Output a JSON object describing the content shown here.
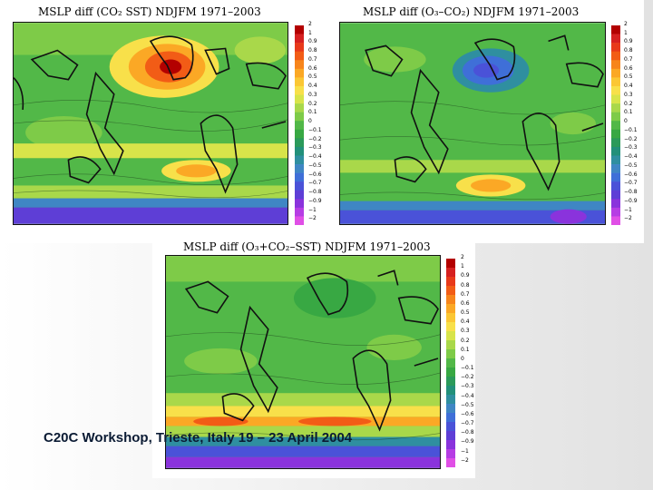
{
  "panels": [
    {
      "title": "MSLP diff (CO₂ SST) NDJFM 1971–2003"
    },
    {
      "title": "MSLP diff (O₃–CO₂) NDJFM 1971–2003"
    },
    {
      "title": "MSLP diff (O₃+CO₂–SST) NDJFM 1971–2003"
    }
  ],
  "colorbar": {
    "labels": [
      "2",
      "1",
      "0.9",
      "0.8",
      "0.7",
      "0.6",
      "0.5",
      "0.4",
      "0.3",
      "0.2",
      "0.1",
      "0",
      "−0.1",
      "−0.2",
      "−0.3",
      "−0.4",
      "−0.5",
      "−0.6",
      "−0.7",
      "−0.8",
      "−0.9",
      "−1",
      "−2"
    ],
    "colors": [
      "#b30000",
      "#d62020",
      "#e8391a",
      "#f25c16",
      "#f7851b",
      "#fba825",
      "#fbc734",
      "#f8e04a",
      "#d8e44a",
      "#a9d84a",
      "#7ecb48",
      "#52b848",
      "#38a843",
      "#2b9a5a",
      "#22907a",
      "#2f8fa0",
      "#3f86c4",
      "#3f6fd8",
      "#4a52d8",
      "#5e3ed6",
      "#8a33dc",
      "#b63de4",
      "#e04fe6"
    ]
  },
  "footer": {
    "text": "C20C Workshop, Trieste, Italy 19 – 23 April 2004"
  }
}
